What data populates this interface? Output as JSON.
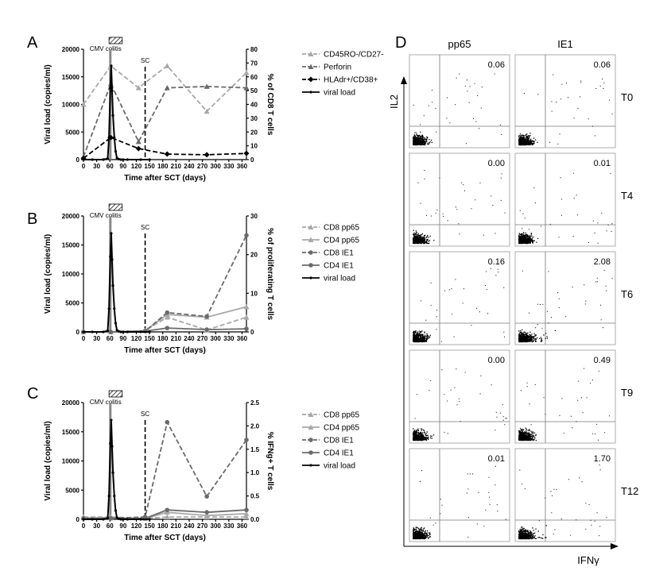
{
  "colors": {
    "dark": "#000000",
    "mid": "#6a6a6a",
    "light": "#a8a8a8",
    "lighter": "#b8b8b8"
  },
  "panels": [
    "A",
    "B",
    "C",
    "D"
  ],
  "shared": {
    "xlabel": "Time after SCT (days)",
    "ylabel_left": "Viral load (copies/ml)",
    "event_label": "CMV colitis",
    "sc_label": "SC",
    "x_ticks": [
      "0",
      "30",
      "60",
      "90",
      "120",
      "150",
      "180",
      "210",
      "240",
      "270",
      "300",
      "330",
      "360"
    ],
    "y_ticks": [
      "0",
      "5000",
      "10000",
      "15000",
      "20000"
    ]
  },
  "chart_data": [
    {
      "panel": "A",
      "type": "line",
      "xlim": [
        0,
        370
      ],
      "ylim_left": [
        0,
        20000
      ],
      "ylim_right": [
        0,
        80
      ],
      "ylabel_left": "Viral load (copies/ml)",
      "ylabel_right": "% of CD8 T cells",
      "right_ticks": [
        "0",
        "10",
        "20",
        "30",
        "40",
        "50",
        "60",
        "70",
        "80"
      ],
      "sc_day": 140,
      "series": [
        {
          "name": "CD45RO-/CD27-",
          "axis": "right",
          "style": "light-dashed-triangle",
          "x": [
            0,
            62,
            125,
            190,
            280,
            370
          ],
          "y": [
            40,
            68,
            52,
            68,
            35,
            63
          ]
        },
        {
          "name": "Perforin",
          "axis": "right",
          "style": "mid-dashed-triangle",
          "x": [
            0,
            62,
            125,
            190,
            280,
            370
          ],
          "y": [
            2,
            55,
            13,
            52,
            53,
            52
          ]
        },
        {
          "name": "HLAdr+/CD38+",
          "axis": "right",
          "style": "dark-dashed-diamond",
          "x": [
            0,
            62,
            125,
            190,
            280,
            370
          ],
          "y": [
            1,
            16,
            8,
            4,
            3.5,
            4.5
          ]
        },
        {
          "name": "viral load",
          "axis": "left",
          "style": "dark-solid",
          "x": [
            0,
            20,
            45,
            55,
            58,
            61,
            63,
            65,
            67,
            70,
            73,
            76,
            80,
            85,
            90,
            100,
            130,
            150
          ],
          "y": [
            0,
            0,
            0,
            200,
            4000,
            13000,
            17000,
            12500,
            8000,
            4000,
            1500,
            300,
            100,
            0,
            0,
            0,
            0,
            0
          ]
        }
      ]
    },
    {
      "panel": "B",
      "type": "line",
      "xlim": [
        0,
        370
      ],
      "ylim_left": [
        0,
        20000
      ],
      "ylim_right": [
        0,
        30
      ],
      "ylabel_left": "Viral load (copies/ml)",
      "ylabel_right": "% of proliferating T cells",
      "right_ticks": [
        "0",
        "10",
        "20",
        "30"
      ],
      "sc_day": 140,
      "series": [
        {
          "name": "CD8 pp65",
          "axis": "right",
          "style": "light-dashed-triangle",
          "x": [
            0,
            62,
            140,
            190,
            280,
            370
          ],
          "y": [
            0,
            0,
            0.3,
            3.8,
            0.5,
            3.8
          ]
        },
        {
          "name": "CD4 pp65",
          "axis": "right",
          "style": "light-solid-triangle",
          "x": [
            0,
            62,
            140,
            190,
            280,
            370
          ],
          "y": [
            0,
            0,
            0.3,
            4.5,
            3.8,
            6.5
          ]
        },
        {
          "name": "CD8 IE1",
          "axis": "right",
          "style": "mid-dashed-circle",
          "x": [
            0,
            62,
            140,
            190,
            280,
            370
          ],
          "y": [
            0,
            0,
            0.2,
            5.0,
            4.0,
            25
          ]
        },
        {
          "name": "CD4 IE1",
          "axis": "right",
          "style": "mid-solid-circle",
          "x": [
            0,
            62,
            140,
            190,
            280,
            370
          ],
          "y": [
            0,
            0,
            0.2,
            1.0,
            0.6,
            0.8
          ]
        },
        {
          "name": "viral load",
          "axis": "left",
          "style": "dark-solid",
          "x": [
            0,
            20,
            45,
            55,
            58,
            61,
            63,
            65,
            67,
            70,
            73,
            76,
            80,
            85,
            90,
            100,
            130,
            150
          ],
          "y": [
            0,
            0,
            0,
            200,
            4000,
            13000,
            17000,
            12500,
            8000,
            4000,
            1500,
            300,
            100,
            0,
            0,
            0,
            0,
            0
          ]
        }
      ]
    },
    {
      "panel": "C",
      "type": "line",
      "xlim": [
        0,
        370
      ],
      "ylim_left": [
        0,
        20000
      ],
      "ylim_right": [
        0,
        2.5
      ],
      "ylabel_left": "Viral load (copies/ml)",
      "ylabel_right": "% IFNg+ T cells",
      "right_ticks": [
        "0.0",
        "0.5",
        "1.0",
        "1.5",
        "2.0",
        "2.5"
      ],
      "sc_day": 140,
      "series": [
        {
          "name": "CD8 pp65",
          "axis": "right",
          "style": "light-dashed-triangle",
          "x": [
            0,
            62,
            140,
            190,
            280,
            370
          ],
          "y": [
            0.05,
            0.05,
            0.02,
            0.05,
            0.05,
            0.05
          ]
        },
        {
          "name": "CD4 pp65",
          "axis": "right",
          "style": "light-solid-triangle",
          "x": [
            0,
            62,
            140,
            190,
            280,
            370
          ],
          "y": [
            0.03,
            0.03,
            0.02,
            0.15,
            0.08,
            0.12
          ]
        },
        {
          "name": "CD8 IE1",
          "axis": "right",
          "style": "mid-dashed-circle",
          "x": [
            0,
            62,
            140,
            190,
            280,
            370
          ],
          "y": [
            0.02,
            0.02,
            0.05,
            2.08,
            0.49,
            1.7
          ]
        },
        {
          "name": "CD4 IE1",
          "axis": "right",
          "style": "mid-solid-circle",
          "x": [
            0,
            62,
            140,
            190,
            280,
            370
          ],
          "y": [
            0.02,
            0.02,
            0.02,
            0.2,
            0.15,
            0.2
          ]
        },
        {
          "name": "viral load",
          "axis": "left",
          "style": "dark-solid",
          "x": [
            0,
            20,
            45,
            55,
            58,
            61,
            63,
            65,
            67,
            70,
            73,
            76,
            80,
            85,
            90,
            100,
            130,
            150
          ],
          "y": [
            0,
            0,
            0,
            200,
            4000,
            13000,
            17000,
            12500,
            8000,
            4000,
            1500,
            300,
            100,
            0,
            0,
            0,
            0,
            0
          ]
        }
      ]
    },
    {
      "panel": "D",
      "type": "scatter",
      "xlabel": "IFNγ",
      "ylabel": "IL2",
      "columns": [
        "pp65",
        "IE1"
      ],
      "rows": [
        {
          "time": "T0",
          "values": [
            "0.06",
            "0.06"
          ]
        },
        {
          "time": "T4",
          "values": [
            "0.00",
            "0.01"
          ]
        },
        {
          "time": "T6",
          "values": [
            "0.16",
            "2.08"
          ]
        },
        {
          "time": "T9",
          "values": [
            "0.00",
            "0.49"
          ]
        },
        {
          "time": "T12",
          "values": [
            "0.01",
            "1.70"
          ]
        }
      ]
    }
  ]
}
